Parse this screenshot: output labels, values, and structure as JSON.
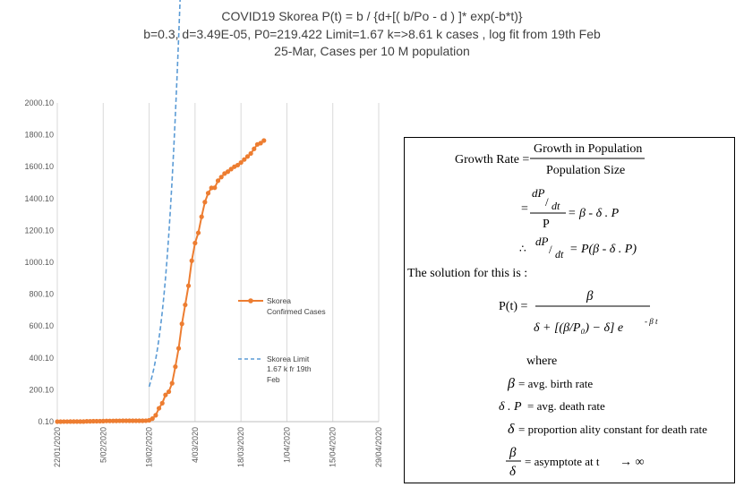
{
  "title": {
    "line1": "COVID19 Skorea P(t) = b / {d+[( b/Po - d ) ]* exp(-b*t)}",
    "line2": "b=0.3, d=3.49E-05, P0=219.422 Limit=1.67 k=>8.61 k cases , log fit from 19th Feb",
    "line3": "25-Mar, Cases per 10 M population"
  },
  "chart_data": {
    "type": "line",
    "title": "COVID19 Skorea P(t) = b / {d+[( b/Po - d ) ]* exp(-b*t)}",
    "subtitle": "b=0.3, d=3.49E-05, P0=219.422 Limit=1.67 k=>8.61 k cases , log fit from 19th Feb; 25-Mar, Cases per 10 M population",
    "xlabel": "",
    "ylabel": "",
    "x_tick_labels": [
      "22/01/2020",
      "5/02/2020",
      "19/02/2020",
      "4/03/2020",
      "18/03/2020",
      "1/04/2020",
      "15/04/2020",
      "29/04/2020"
    ],
    "y_tick_labels": [
      "0.10",
      "200.10",
      "400.10",
      "600.10",
      "800.10",
      "1000.10",
      "1200.10",
      "1400.10",
      "1600.10",
      "1800.10",
      "2000.10"
    ],
    "xlim": [
      "2020-01-22",
      "2020-04-29"
    ],
    "ylim": [
      0.1,
      2000.1
    ],
    "grid": "vertical",
    "legend_position": "center-right",
    "series": [
      {
        "name": "Skorea Confirmed Cases",
        "color": "#ED7D31",
        "marker": "circle",
        "x": [
          "2020-01-22",
          "2020-01-23",
          "2020-01-24",
          "2020-01-25",
          "2020-01-26",
          "2020-01-27",
          "2020-01-28",
          "2020-01-29",
          "2020-01-30",
          "2020-01-31",
          "2020-02-01",
          "2020-02-02",
          "2020-02-03",
          "2020-02-04",
          "2020-02-05",
          "2020-02-06",
          "2020-02-07",
          "2020-02-08",
          "2020-02-09",
          "2020-02-10",
          "2020-02-11",
          "2020-02-12",
          "2020-02-13",
          "2020-02-14",
          "2020-02-15",
          "2020-02-16",
          "2020-02-17",
          "2020-02-18",
          "2020-02-19",
          "2020-02-20",
          "2020-02-21",
          "2020-02-22",
          "2020-02-23",
          "2020-02-24",
          "2020-02-25",
          "2020-02-26",
          "2020-02-27",
          "2020-02-28",
          "2020-02-29",
          "2020-03-01",
          "2020-03-02",
          "2020-03-03",
          "2020-03-04",
          "2020-03-05",
          "2020-03-06",
          "2020-03-07",
          "2020-03-08",
          "2020-03-09",
          "2020-03-10",
          "2020-03-11",
          "2020-03-12",
          "2020-03-13",
          "2020-03-14",
          "2020-03-15",
          "2020-03-16",
          "2020-03-17",
          "2020-03-18",
          "2020-03-19",
          "2020-03-20",
          "2020-03-21",
          "2020-03-22",
          "2020-03-23",
          "2020-03-24",
          "2020-03-25"
        ],
        "y": [
          0.2,
          0.2,
          0.4,
          0.4,
          0.6,
          0.8,
          0.8,
          0.8,
          0.8,
          2.1,
          2.3,
          2.9,
          2.9,
          3.1,
          3.5,
          4.6,
          4.8,
          4.8,
          5.0,
          5.4,
          5.6,
          5.6,
          5.6,
          5.6,
          5.6,
          5.8,
          5.8,
          6.0,
          8.4,
          19,
          40,
          84,
          116,
          168,
          188,
          241,
          345,
          460,
          614,
          733,
          853,
          1010,
          1121,
          1185,
          1286,
          1378,
          1434,
          1467,
          1468,
          1512,
          1535,
          1557,
          1569,
          1585,
          1600,
          1610,
          1626,
          1645,
          1664,
          1683,
          1712,
          1740,
          1748,
          1764
        ]
      },
      {
        "name": "Skorea Limit 1.67 k fr 19th Feb",
        "color": "#5B9BD5",
        "dash": "dashed",
        "fit": {
          "b": 0.3,
          "d": 3.49e-05,
          "P0": 219.422,
          "limit": 1670,
          "start": "2020-02-19",
          "end": "2020-04-29"
        }
      }
    ]
  },
  "legend": {
    "series1_line1": "Skorea",
    "series1_line2": "Confirmed Cases",
    "series2_line1": "Skorea Limit",
    "series2_line2": "1.67 k fr 19th",
    "series2_line3": "Feb"
  },
  "formula_box": {
    "growth_rate_label": "Growth Rate =",
    "growth_numerator": "Growth in Population",
    "growth_denominator": "Population Size",
    "solution_text": "The solution for this is :",
    "where": "where",
    "beta_def": "= avg. birth rate",
    "delta_p_def": "= avg. death rate",
    "delta_def": "= proportion ality constant for death rate",
    "asymptote_def": "= asymptote at t"
  }
}
